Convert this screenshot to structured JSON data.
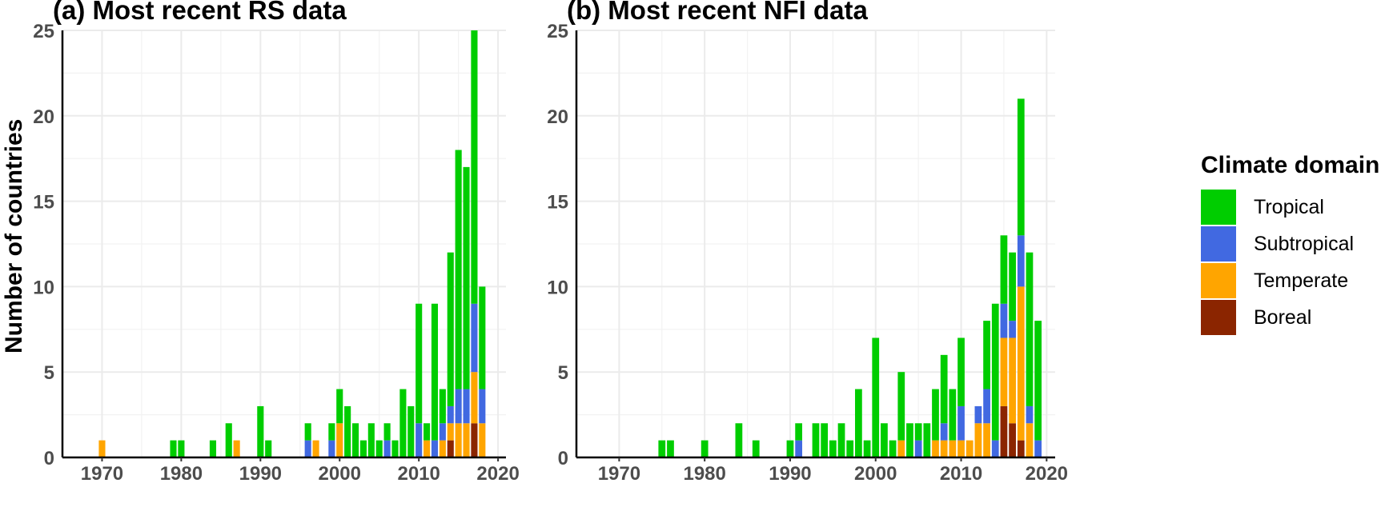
{
  "chart_data": [
    {
      "type": "bar",
      "stacked": true,
      "title": "(a) Most recent RS data",
      "xlabel": "",
      "ylabel": "Number of countries",
      "ylim": [
        0,
        25
      ],
      "xlim": [
        1965,
        2021
      ],
      "xticks": [
        1970,
        1980,
        1990,
        2000,
        2010,
        2020
      ],
      "yticks": [
        0,
        5,
        10,
        15,
        20,
        25
      ],
      "grid": true,
      "x": [
        1970,
        1979,
        1980,
        1984,
        1986,
        1987,
        1990,
        1991,
        1996,
        1997,
        1999,
        2000,
        2001,
        2002,
        2003,
        2004,
        2005,
        2006,
        2007,
        2008,
        2009,
        2010,
        2011,
        2012,
        2013,
        2014,
        2015,
        2016,
        2017,
        2018
      ],
      "series": [
        {
          "name": "Boreal",
          "color": "#8B2500",
          "values": [
            0,
            0,
            0,
            0,
            0,
            0,
            0,
            0,
            0,
            0,
            0,
            0,
            0,
            0,
            0,
            0,
            0,
            0,
            0,
            0,
            0,
            0,
            0,
            0,
            0,
            1,
            0,
            0,
            2,
            0
          ]
        },
        {
          "name": "Temperate",
          "color": "#FFA500",
          "values": [
            1,
            0,
            0,
            0,
            0,
            1,
            0,
            0,
            0,
            1,
            0,
            2,
            0,
            0,
            0,
            0,
            0,
            0,
            0,
            0,
            0,
            0,
            1,
            0,
            1,
            1,
            2,
            2,
            3,
            2
          ]
        },
        {
          "name": "Subtropical",
          "color": "#4169E1",
          "values": [
            0,
            0,
            0,
            0,
            0,
            0,
            0,
            0,
            1,
            0,
            1,
            0,
            0,
            0,
            0,
            0,
            0,
            1,
            0,
            0,
            0,
            2,
            0,
            1,
            1,
            1,
            2,
            2,
            4,
            2
          ]
        },
        {
          "name": "Tropical",
          "color": "#00CD00",
          "values": [
            0,
            1,
            1,
            1,
            2,
            0,
            3,
            1,
            1,
            0,
            1,
            2,
            3,
            2,
            1,
            2,
            1,
            1,
            1,
            4,
            3,
            7,
            1,
            8,
            2,
            9,
            14,
            13,
            16,
            6
          ]
        }
      ]
    },
    {
      "type": "bar",
      "stacked": true,
      "title": "(b) Most recent NFI data",
      "xlabel": "",
      "ylabel": "",
      "ylim": [
        0,
        25
      ],
      "xlim": [
        1965,
        2021
      ],
      "xticks": [
        1970,
        1980,
        1990,
        2000,
        2010,
        2020
      ],
      "yticks": [
        0,
        5,
        10,
        15,
        20,
        25
      ],
      "grid": true,
      "x": [
        1975,
        1976,
        1980,
        1984,
        1986,
        1990,
        1991,
        1993,
        1994,
        1995,
        1996,
        1997,
        1998,
        1999,
        2000,
        2001,
        2002,
        2003,
        2004,
        2005,
        2006,
        2007,
        2008,
        2009,
        2010,
        2011,
        2012,
        2013,
        2014,
        2015,
        2016,
        2017,
        2018,
        2019
      ],
      "series": [
        {
          "name": "Boreal",
          "color": "#8B2500",
          "values": [
            0,
            0,
            0,
            0,
            0,
            0,
            0,
            0,
            0,
            0,
            0,
            0,
            0,
            0,
            0,
            0,
            0,
            0,
            0,
            0,
            0,
            0,
            0,
            0,
            0,
            0,
            0,
            0,
            0,
            3,
            2,
            1,
            0,
            0
          ]
        },
        {
          "name": "Temperate",
          "color": "#FFA500",
          "values": [
            0,
            0,
            0,
            0,
            0,
            0,
            0,
            0,
            0,
            0,
            0,
            0,
            0,
            0,
            0,
            0,
            0,
            1,
            0,
            0,
            0,
            1,
            1,
            1,
            1,
            1,
            2,
            2,
            0,
            4,
            5,
            9,
            2,
            0
          ]
        },
        {
          "name": "Subtropical",
          "color": "#4169E1",
          "values": [
            0,
            0,
            0,
            0,
            0,
            0,
            1,
            0,
            0,
            0,
            0,
            0,
            0,
            0,
            0,
            0,
            0,
            0,
            0,
            1,
            0,
            0,
            1,
            0,
            2,
            0,
            1,
            2,
            1,
            2,
            1,
            3,
            1,
            1
          ]
        },
        {
          "name": "Tropical",
          "color": "#00CD00",
          "values": [
            1,
            1,
            1,
            2,
            1,
            1,
            1,
            2,
            2,
            1,
            2,
            1,
            4,
            1,
            7,
            2,
            1,
            4,
            2,
            1,
            2,
            3,
            4,
            3,
            4,
            0,
            0,
            4,
            8,
            4,
            4,
            8,
            9,
            7
          ]
        }
      ]
    }
  ],
  "panels": {
    "a": {
      "title": "(a) Most recent RS data"
    },
    "b": {
      "title": "(b) Most recent NFI data"
    }
  },
  "axes": {
    "ylabel": "Number of countries"
  },
  "legend": {
    "title": "Climate domain",
    "items": [
      {
        "label": "Tropical",
        "color": "#00CD00"
      },
      {
        "label": "Subtropical",
        "color": "#4169E1"
      },
      {
        "label": "Temperate",
        "color": "#FFA500"
      },
      {
        "label": "Boreal",
        "color": "#8B2500"
      }
    ]
  }
}
